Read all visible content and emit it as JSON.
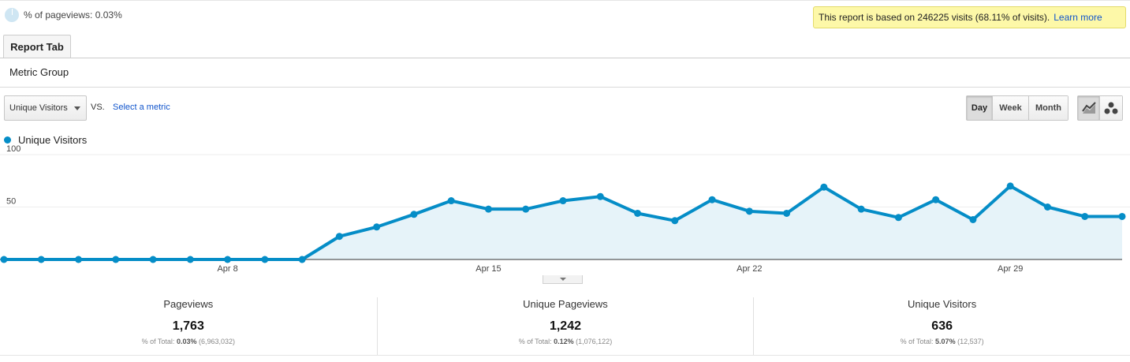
{
  "summary": {
    "pct_label": "% of pageviews: 0.03%"
  },
  "banner": {
    "text": "This report is based on 246225 visits (68.11% of visits).",
    "link": "Learn more"
  },
  "tabs": [
    {
      "label": "Report Tab"
    }
  ],
  "metric_group": "Metric Group",
  "controls": {
    "metric_select": "Unique Visitors",
    "vs_label": "VS.",
    "select_metric_link": "Select a metric",
    "periods": [
      "Day",
      "Week",
      "Month"
    ],
    "active_period": "Day",
    "chart_types": [
      "line-chart-icon",
      "motion-chart-icon"
    ]
  },
  "chart_data": {
    "type": "area",
    "series": [
      {
        "name": "Unique Visitors",
        "color": "#058dc7",
        "values": [
          0,
          0,
          0,
          0,
          0,
          0,
          0,
          0,
          0,
          22,
          31,
          43,
          56,
          48,
          48,
          56,
          60,
          44,
          37,
          57,
          46,
          44,
          69,
          48,
          40,
          57,
          38,
          70,
          50,
          41,
          41
        ]
      }
    ],
    "x_labels": [
      {
        "index": 6,
        "label": "Apr 8"
      },
      {
        "index": 13,
        "label": "Apr 15"
      },
      {
        "index": 20,
        "label": "Apr 22"
      },
      {
        "index": 27,
        "label": "Apr 29"
      }
    ],
    "y_ticks": [
      50,
      100
    ],
    "ylim": [
      0,
      100
    ],
    "grid": true
  },
  "stats": [
    {
      "label": "Pageviews",
      "value": "1,763",
      "sub_prefix": "% of Total:",
      "sub_pct": "0.03%",
      "sub_total": "(6,963,032)"
    },
    {
      "label": "Unique Pageviews",
      "value": "1,242",
      "sub_prefix": "% of Total:",
      "sub_pct": "0.12%",
      "sub_total": "(1,076,122)"
    },
    {
      "label": "Unique Visitors",
      "value": "636",
      "sub_prefix": "% of Total:",
      "sub_pct": "5.07%",
      "sub_total": "(12,537)"
    }
  ]
}
